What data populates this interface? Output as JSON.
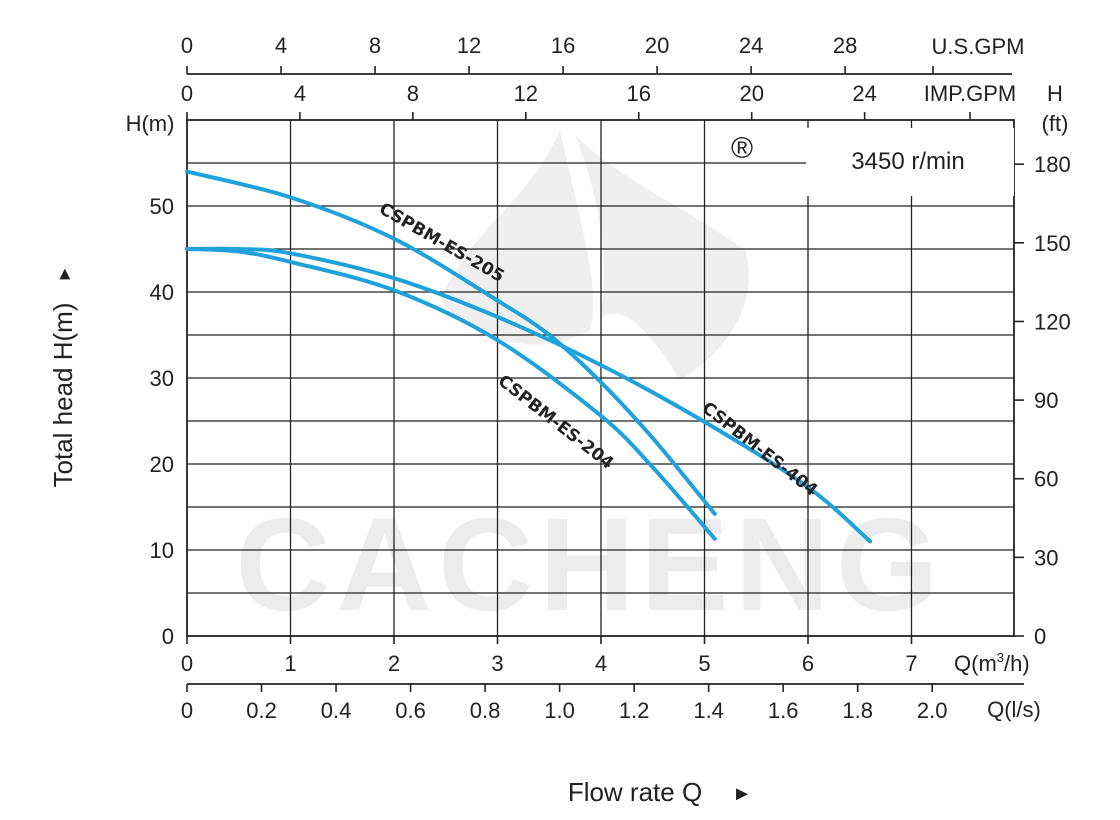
{
  "chart_data": {
    "type": "line",
    "speed_label": "3450 r/min",
    "watermark": {
      "text": "CACHENG",
      "registered_mark": "®"
    },
    "y_axis_left": {
      "unit": "H(m)",
      "ylim": [
        0,
        60
      ],
      "ticks": [
        0,
        10,
        20,
        30,
        40,
        50
      ]
    },
    "y_axis_right": {
      "unit_line1": "H",
      "unit_line2": "(ft)",
      "ticks": [
        0,
        30,
        60,
        90,
        120,
        150,
        180
      ]
    },
    "x_axis_m3h": {
      "unit": "Q(m³/h)",
      "unit_base": "Q(m",
      "unit_sup": "3",
      "unit_tail": "/h)",
      "xlim": [
        0,
        8
      ],
      "ticks": [
        0,
        1,
        2,
        3,
        4,
        5,
        6,
        7
      ]
    },
    "x_axis_ls": {
      "unit": "Q(l/s)",
      "ticks": [
        "0",
        "0.2",
        "0.4",
        "0.6",
        "0.8",
        "1.0",
        "1.2",
        "1.4",
        "1.6",
        "1.8",
        "2.0"
      ]
    },
    "x_axis_usgpm": {
      "unit": "U.S.GPM",
      "ticks": [
        0,
        4,
        8,
        12,
        16,
        20,
        24,
        28
      ]
    },
    "x_axis_impgpm": {
      "unit": "IMP.GPM",
      "ticks": [
        0,
        4,
        8,
        12,
        16,
        20,
        24
      ]
    },
    "xlabel": "Flow rate  Q",
    "ylabel": "Total  head H(m)",
    "xlabel_arrow": "►",
    "ylabel_arrow": "►",
    "series": [
      {
        "name": "CSPBM-ES-205",
        "points": [
          [
            0,
            54.0
          ],
          [
            1,
            51.0
          ],
          [
            2,
            46.2
          ],
          [
            3,
            39.0
          ],
          [
            3.5,
            35.0
          ],
          [
            4,
            29.5
          ],
          [
            4.5,
            23.0
          ],
          [
            5.1,
            14.2
          ]
        ]
      },
      {
        "name": "CSPBM-ES-204",
        "points": [
          [
            0,
            45.0
          ],
          [
            0.5,
            44.7
          ],
          [
            1,
            43.5
          ],
          [
            2,
            40.2
          ],
          [
            3,
            34.4
          ],
          [
            4,
            25.6
          ],
          [
            4.5,
            19.6
          ],
          [
            5.1,
            11.3
          ]
        ]
      },
      {
        "name": "CSPBM-ES-404",
        "points": [
          [
            0,
            45.0
          ],
          [
            0.5,
            45.0
          ],
          [
            1,
            44.5
          ],
          [
            2,
            41.6
          ],
          [
            3,
            37.1
          ],
          [
            4,
            31.5
          ],
          [
            5,
            24.9
          ],
          [
            6,
            17.3
          ],
          [
            6.6,
            11.0
          ]
        ]
      }
    ]
  }
}
